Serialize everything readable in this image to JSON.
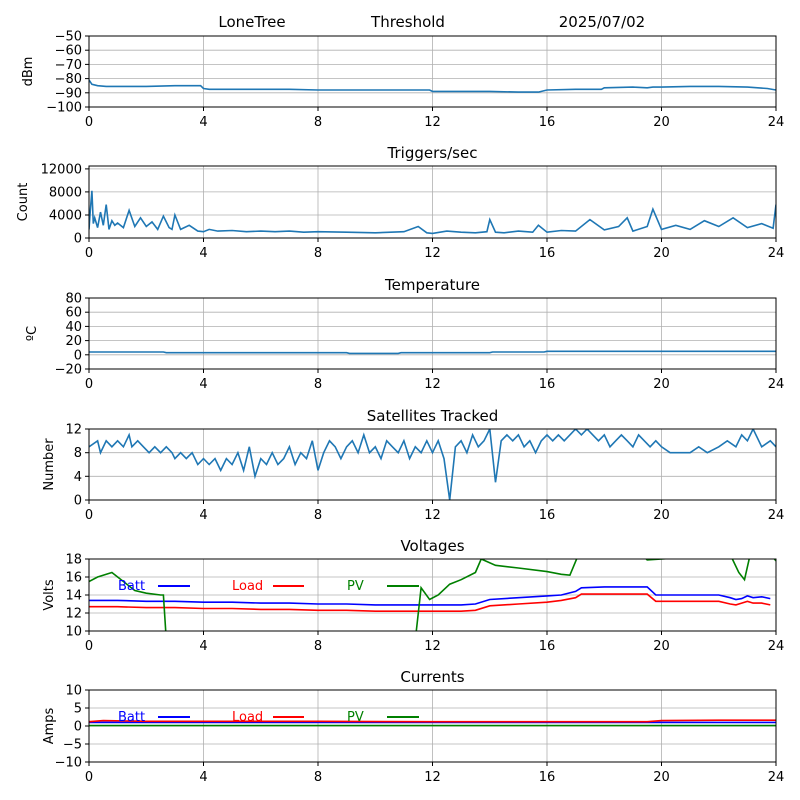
{
  "header": {
    "site": "LoneTree",
    "label": "Threshold",
    "date": "2025/07/02"
  },
  "chart_data": [
    {
      "type": "line",
      "title": "",
      "ylabel": "dBm",
      "xlim": [
        0,
        24
      ],
      "ylim": [
        -100,
        -50
      ],
      "xticks": [
        "0",
        "4",
        "8",
        "12",
        "16",
        "20",
        "24"
      ],
      "yticks": [
        "−50",
        "−60",
        "−70",
        "−80",
        "−90",
        "−100"
      ],
      "ytick_values": [
        -50,
        -60,
        -70,
        -80,
        -90,
        -100
      ],
      "grid": true,
      "series": [
        {
          "color": "#1f77b4",
          "x": [
            0,
            0.1,
            0.3,
            0.6,
            1,
            2,
            3,
            3.9,
            4.0,
            4.2,
            5,
            6,
            7,
            8,
            9,
            10,
            11,
            11.9,
            12.0,
            13,
            14,
            15,
            15.7,
            16.0,
            17,
            17.9,
            18.0,
            19,
            19.5,
            19.7,
            20,
            21,
            22,
            23,
            23.7,
            24
          ],
          "values": [
            -81,
            -84,
            -85,
            -85.5,
            -85.5,
            -85.5,
            -85,
            -85,
            -87,
            -87.5,
            -87.5,
            -87.5,
            -87.5,
            -88,
            -88,
            -88,
            -88,
            -88,
            -89,
            -89,
            -89,
            -89.5,
            -89.5,
            -88,
            -87.5,
            -87.5,
            -86.5,
            -86,
            -86.5,
            -86,
            -86,
            -85.5,
            -85.5,
            -86,
            -87,
            -88
          ]
        }
      ]
    },
    {
      "type": "line",
      "title": "Triggers/sec",
      "ylabel": "Count",
      "xlim": [
        0,
        24
      ],
      "ylim": [
        0,
        12500
      ],
      "xticks": [
        "0",
        "4",
        "8",
        "12",
        "16",
        "20",
        "24"
      ],
      "yticks": [
        "12000",
        "8000",
        "4000",
        "0"
      ],
      "ytick_values": [
        12000,
        8000,
        4000,
        0
      ],
      "grid": true,
      "series": [
        {
          "color": "#1f77b4",
          "x": [
            0,
            0.05,
            0.1,
            0.15,
            0.2,
            0.3,
            0.4,
            0.5,
            0.6,
            0.7,
            0.8,
            0.9,
            1.0,
            1.2,
            1.4,
            1.6,
            1.8,
            2.0,
            2.2,
            2.4,
            2.6,
            2.8,
            2.9,
            3.0,
            3.2,
            3.5,
            3.8,
            4.0,
            4.2,
            4.5,
            5,
            5.5,
            6,
            6.5,
            7,
            7.5,
            8,
            9,
            10,
            11,
            11.5,
            11.8,
            12,
            12.5,
            13,
            13.5,
            13.9,
            14.0,
            14.2,
            14.5,
            15,
            15.5,
            15.7,
            16,
            16.5,
            17,
            17.5,
            18,
            18.5,
            18.8,
            19,
            19.5,
            19.7,
            20,
            20.5,
            21,
            21.5,
            22,
            22.5,
            23,
            23.5,
            23.9,
            24
          ],
          "values": [
            1500,
            5000,
            8200,
            2500,
            3500,
            1800,
            4500,
            2200,
            5800,
            1500,
            3000,
            2200,
            2600,
            1800,
            4800,
            2000,
            3500,
            2000,
            2800,
            1500,
            3800,
            1800,
            1500,
            4000,
            1500,
            2200,
            1200,
            1100,
            1500,
            1200,
            1300,
            1100,
            1200,
            1100,
            1200,
            1000,
            1100,
            1000,
            900,
            1100,
            2000,
            900,
            800,
            1200,
            1000,
            900,
            1100,
            3200,
            1000,
            900,
            1200,
            1000,
            2200,
            1000,
            1300,
            1200,
            3200,
            1400,
            2000,
            3500,
            1200,
            2000,
            5000,
            1500,
            2200,
            1500,
            3000,
            2000,
            3500,
            1800,
            2500,
            1700,
            5800
          ]
        }
      ]
    },
    {
      "type": "line",
      "title": "Temperature",
      "ylabel": "°C",
      "ylabel_display": "ºC",
      "xlim": [
        0,
        24
      ],
      "ylim": [
        -20,
        80
      ],
      "xticks": [
        "0",
        "4",
        "8",
        "12",
        "16",
        "20",
        "24"
      ],
      "yticks": [
        "80",
        "60",
        "40",
        "20",
        "0",
        "−20"
      ],
      "ytick_values": [
        80,
        60,
        40,
        20,
        0,
        -20
      ],
      "grid": true,
      "series": [
        {
          "color": "#1f77b4",
          "x": [
            0,
            2.6,
            2.7,
            9,
            9.1,
            10.8,
            10.9,
            14,
            14.1,
            15.9,
            16,
            24
          ],
          "values": [
            4,
            4,
            3,
            3,
            2,
            2,
            3,
            3,
            4,
            4,
            5,
            5
          ]
        }
      ]
    },
    {
      "type": "line",
      "title": "Satellites Tracked",
      "ylabel": "Number",
      "xlim": [
        0,
        24
      ],
      "ylim": [
        0,
        12
      ],
      "xticks": [
        "0",
        "4",
        "8",
        "12",
        "16",
        "20",
        "24"
      ],
      "yticks": [
        "12",
        "8",
        "4",
        "0"
      ],
      "ytick_values": [
        12,
        8,
        4,
        0
      ],
      "grid": true,
      "series": [
        {
          "color": "#1f77b4",
          "x": [
            0,
            0.3,
            0.4,
            0.6,
            0.8,
            1.0,
            1.2,
            1.4,
            1.5,
            1.7,
            1.9,
            2.1,
            2.3,
            2.5,
            2.7,
            2.9,
            3.0,
            3.2,
            3.4,
            3.6,
            3.8,
            4.0,
            4.2,
            4.4,
            4.6,
            4.8,
            5.0,
            5.2,
            5.4,
            5.6,
            5.8,
            6.0,
            6.2,
            6.4,
            6.6,
            6.8,
            7.0,
            7.2,
            7.4,
            7.6,
            7.8,
            8.0,
            8.2,
            8.4,
            8.6,
            8.8,
            9.0,
            9.2,
            9.4,
            9.6,
            9.8,
            10.0,
            10.2,
            10.4,
            10.6,
            10.8,
            11.0,
            11.2,
            11.4,
            11.6,
            11.8,
            12.0,
            12.2,
            12.4,
            12.6,
            12.8,
            13.0,
            13.2,
            13.4,
            13.6,
            13.8,
            14.0,
            14.2,
            14.4,
            14.6,
            14.8,
            15.0,
            15.2,
            15.4,
            15.6,
            15.8,
            16.0,
            16.2,
            16.4,
            16.6,
            16.8,
            17.0,
            17.2,
            17.4,
            17.6,
            17.8,
            18.0,
            18.2,
            18.4,
            18.6,
            18.8,
            19.0,
            19.2,
            19.4,
            19.6,
            19.8,
            20.0,
            20.3,
            20.6,
            21.0,
            21.3,
            21.6,
            22.0,
            22.3,
            22.6,
            22.8,
            23.0,
            23.2,
            23.5,
            23.8,
            24
          ],
          "values": [
            9,
            10,
            8,
            10,
            9,
            10,
            9,
            11,
            9,
            10,
            9,
            8,
            9,
            8,
            9,
            8,
            7,
            8,
            7,
            8,
            6,
            7,
            6,
            7,
            5,
            7,
            6,
            8,
            5,
            9,
            4,
            7,
            6,
            8,
            6,
            7,
            9,
            6,
            8,
            7,
            10,
            5,
            8,
            10,
            9,
            7,
            9,
            10,
            8,
            11,
            8,
            9,
            7,
            10,
            9,
            8,
            10,
            7,
            9,
            8,
            10,
            8,
            10,
            7,
            0,
            9,
            10,
            8,
            11,
            9,
            10,
            12,
            3,
            10,
            11,
            10,
            11,
            9,
            10,
            8,
            10,
            11,
            10,
            11,
            10,
            11,
            12,
            11,
            12,
            11,
            10,
            11,
            9,
            10,
            11,
            10,
            9,
            11,
            10,
            9,
            10,
            9,
            8,
            8,
            8,
            9,
            8,
            9,
            10,
            9,
            11,
            10,
            12,
            9,
            10,
            9
          ]
        }
      ]
    },
    {
      "type": "line",
      "title": "Voltages",
      "ylabel": "Volts",
      "xlim": [
        0,
        24
      ],
      "ylim": [
        10,
        18
      ],
      "xticks": [
        "0",
        "4",
        "8",
        "12",
        "16",
        "20",
        "24"
      ],
      "yticks": [
        "18",
        "16",
        "14",
        "12",
        "10"
      ],
      "ytick_values": [
        18,
        16,
        14,
        12,
        10
      ],
      "grid": true,
      "legend": "top",
      "series": [
        {
          "name": "Batt",
          "color": "#0000ff",
          "x": [
            0,
            1,
            2,
            3,
            4,
            5,
            6,
            7,
            8,
            9,
            10,
            11,
            12,
            13,
            13.5,
            14,
            15,
            16,
            16.5,
            17,
            17.2,
            18,
            19,
            19.5,
            19.8,
            20,
            21,
            22,
            22.4,
            22.6,
            22.8,
            23,
            23.2,
            23.5,
            23.8
          ],
          "values": [
            13.4,
            13.4,
            13.3,
            13.3,
            13.2,
            13.2,
            13.1,
            13.1,
            13.0,
            13.0,
            12.9,
            12.9,
            12.9,
            12.9,
            13.0,
            13.5,
            13.7,
            13.9,
            14.0,
            14.4,
            14.8,
            14.9,
            14.9,
            14.9,
            14.0,
            14.0,
            14.0,
            14.0,
            13.7,
            13.5,
            13.6,
            13.9,
            13.7,
            13.8,
            13.6
          ]
        },
        {
          "name": "Load",
          "color": "#ff0000",
          "x": [
            0,
            1,
            2,
            3,
            4,
            5,
            6,
            7,
            8,
            9,
            10,
            11,
            12,
            13,
            13.5,
            14,
            15,
            16,
            16.5,
            17,
            17.2,
            18,
            19,
            19.5,
            19.8,
            20,
            21,
            22,
            22.4,
            22.6,
            22.8,
            23,
            23.2,
            23.5,
            23.8
          ],
          "values": [
            12.7,
            12.7,
            12.6,
            12.6,
            12.5,
            12.5,
            12.4,
            12.4,
            12.3,
            12.3,
            12.2,
            12.2,
            12.2,
            12.2,
            12.3,
            12.8,
            13.0,
            13.2,
            13.4,
            13.7,
            14.1,
            14.1,
            14.1,
            14.1,
            13.3,
            13.3,
            13.3,
            13.3,
            13.0,
            12.9,
            13.1,
            13.3,
            13.1,
            13.1,
            12.9
          ]
        },
        {
          "name": "PV",
          "color": "#008000",
          "x": [
            0,
            0.3,
            0.8,
            1.2,
            1.6,
            2.0,
            2.5,
            2.6,
            2.7,
            11.4,
            11.6,
            11.9,
            12.2,
            12.6,
            13.0,
            13.5,
            13.7,
            14.2,
            15,
            16,
            16.5,
            16.8,
            17.1,
            19.3,
            19.5,
            22.4,
            22.7,
            22.9,
            23.1,
            23.8,
            24
          ],
          "values": [
            15.5,
            16.0,
            16.5,
            15.5,
            14.5,
            14.2,
            14.0,
            14.0,
            9.0,
            9.0,
            14.8,
            13.5,
            14.0,
            15.2,
            15.7,
            16.5,
            18.0,
            17.3,
            17.0,
            16.6,
            16.3,
            16.2,
            18.5,
            18.5,
            17.9,
            18.5,
            16.5,
            15.7,
            18.5,
            18.5,
            17.8
          ]
        }
      ]
    },
    {
      "type": "line",
      "title": "Currents",
      "ylabel": "Amps",
      "xlim": [
        0,
        24
      ],
      "ylim": [
        -10,
        10
      ],
      "xticks": [
        "0",
        "4",
        "8",
        "12",
        "16",
        "20",
        "24"
      ],
      "yticks": [
        "10",
        "5",
        "0",
        "−5",
        "−10"
      ],
      "ytick_values": [
        10,
        5,
        0,
        -5,
        -10
      ],
      "grid": true,
      "legend": "top",
      "series": [
        {
          "name": "Batt",
          "color": "#0000ff",
          "x": [
            0,
            24
          ],
          "values": [
            1.0,
            1.0
          ]
        },
        {
          "name": "Load",
          "color": "#ff0000",
          "x": [
            0,
            0.5,
            2,
            4,
            8,
            12,
            16,
            19.5,
            20,
            22,
            24
          ],
          "values": [
            1.2,
            1.5,
            1.3,
            1.3,
            1.3,
            1.2,
            1.2,
            1.2,
            1.5,
            1.6,
            1.6
          ]
        },
        {
          "name": "PV",
          "color": "#008000",
          "x": [
            0,
            24
          ],
          "values": [
            0.1,
            0.1
          ]
        }
      ]
    }
  ]
}
